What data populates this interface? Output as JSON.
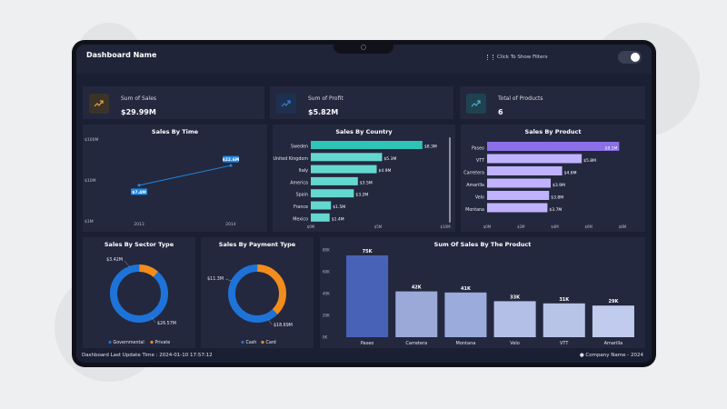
{
  "header": {
    "title": "Dashboard Name",
    "filters_label": "Click To Show Filters"
  },
  "kpis": [
    {
      "label": "Sum of Sales",
      "value": "$29.99M",
      "icon": "trend-up-icon",
      "color": "#e8a045"
    },
    {
      "label": "Sum of Profit",
      "value": "$5.82M",
      "icon": "trend-up-icon",
      "color": "#3a7bd5"
    },
    {
      "label": "Total of Products",
      "value": "6",
      "icon": "trend-up-icon",
      "color": "#4ab0c8"
    }
  ],
  "charts": {
    "sales_by_time": {
      "title": "Sales By Time"
    },
    "sales_by_country": {
      "title": "Sales By Country"
    },
    "sales_by_product": {
      "title": "Sales By Product"
    },
    "sales_by_sector": {
      "title": "Sales By Sector Type"
    },
    "sales_by_payment": {
      "title": "Sales By Payment Type"
    },
    "sum_of_sales_by_product": {
      "title": "Sum Of Sales By The Product"
    }
  },
  "chart_data": [
    {
      "type": "line",
      "title": "Sales By Time",
      "x": [
        "2013",
        "2014"
      ],
      "values": [
        7.4,
        22.6
      ],
      "data_labels": [
        "$7.4M",
        "$22.6M"
      ],
      "yticks": [
        "$100M",
        "$10M",
        "$1M"
      ],
      "ylim": [
        1,
        100
      ],
      "yscale": "log",
      "color": "#1e88e5"
    },
    {
      "type": "bar",
      "orientation": "horizontal",
      "title": "Sales By Country",
      "categories": [
        "Sweden",
        "United Kingdom",
        "Italy",
        "America",
        "Spain",
        "France",
        "Mexico"
      ],
      "values": [
        8.3,
        5.3,
        4.9,
        3.5,
        3.2,
        1.5,
        1.4
      ],
      "data_labels": [
        "$8.3M",
        "$5.3M",
        "$4.9M",
        "$3.5M",
        "$3.2M",
        "$1.5M",
        "$1.4M"
      ],
      "xticks": [
        "$0M",
        "$5M",
        "$10M"
      ],
      "xlim": [
        0,
        10
      ],
      "colors": [
        "#2ec4b6",
        "#64d8cf"
      ]
    },
    {
      "type": "bar",
      "orientation": "horizontal",
      "title": "Sales By Product",
      "categories": [
        "Paseo",
        "VTT",
        "Carretera",
        "Amarilla",
        "Velo",
        "Montana"
      ],
      "values": [
        8.1,
        5.8,
        4.6,
        3.9,
        3.8,
        3.7
      ],
      "data_labels": [
        "$8.1M",
        "$5.8M",
        "$4.6M",
        "$3.9M",
        "$3.8M",
        "$3.7M"
      ],
      "xticks": [
        "$0M",
        "$2M",
        "$4M",
        "$6M",
        "$8M"
      ],
      "xlim": [
        0,
        8.3
      ],
      "colors": [
        "#8a6fe8",
        "#c0b2ff"
      ]
    },
    {
      "type": "pie",
      "title": "Sales By Sector Type",
      "labels": [
        "Governmental",
        "Private"
      ],
      "values": [
        26.57,
        3.42
      ],
      "data_labels": [
        "$26.57M",
        "$3.42M"
      ],
      "colors": [
        "#1e73d9",
        "#f28c1c"
      ],
      "legend": "bottom"
    },
    {
      "type": "pie",
      "title": "Sales By Payment Type",
      "labels": [
        "Cash",
        "Card"
      ],
      "values": [
        18.69,
        11.3
      ],
      "data_labels": [
        "$18.69M",
        "$11.3M"
      ],
      "colors": [
        "#1e73d9",
        "#f28c1c"
      ],
      "legend": "bottom"
    },
    {
      "type": "bar",
      "title": "Sum Of Sales By The Product",
      "categories": [
        "Paseo",
        "Carretera",
        "Montana",
        "Velo",
        "VTT",
        "Amarilla"
      ],
      "values": [
        75,
        42,
        41,
        33,
        31,
        29
      ],
      "data_labels": [
        "75K",
        "42K",
        "41K",
        "33K",
        "31K",
        "29K"
      ],
      "yticks": [
        "80K",
        "60K",
        "40K",
        "20K",
        "0K"
      ],
      "ylim": [
        0,
        80
      ],
      "colors": [
        "#4862b8",
        "#9aa9d8",
        "#9aabdc",
        "#b3bfe6",
        "#b8c3e8",
        "#c0cbee"
      ]
    }
  ],
  "footer": {
    "last_update": "Dashboard Last Update Time : 2024-01-10 17:57:12",
    "company": "Company Name - 2024"
  }
}
